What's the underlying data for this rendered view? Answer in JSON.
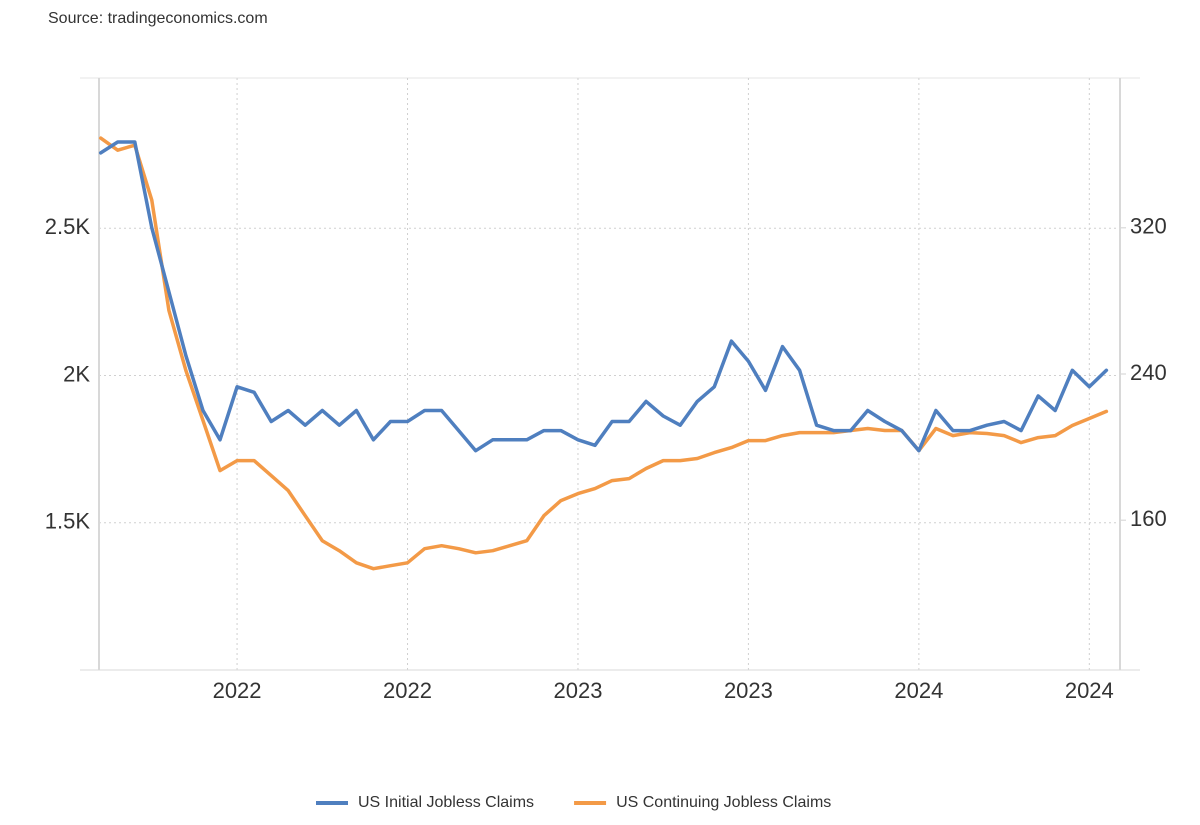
{
  "chart_data": {
    "type": "line",
    "source": "Source: tradingeconomics.com",
    "x": [
      2021.6,
      2021.65,
      2021.7,
      2021.75,
      2021.8,
      2021.85,
      2021.9,
      2021.95,
      2022.0,
      2022.05,
      2022.1,
      2022.15,
      2022.2,
      2022.25,
      2022.3,
      2022.35,
      2022.4,
      2022.45,
      2022.5,
      2022.55,
      2022.6,
      2022.65,
      2022.7,
      2022.75,
      2022.8,
      2022.85,
      2022.9,
      2022.95,
      2023.0,
      2023.05,
      2023.1,
      2023.15,
      2023.2,
      2023.25,
      2023.3,
      2023.35,
      2023.4,
      2023.45,
      2023.5,
      2023.55,
      2023.6,
      2023.65,
      2023.7,
      2023.75,
      2023.8,
      2023.85,
      2023.9,
      2023.95,
      2024.0,
      2024.05,
      2024.1,
      2024.15,
      2024.2,
      2024.25,
      2024.3,
      2024.35,
      2024.4,
      2024.45,
      2024.5,
      2024.55
    ],
    "series": [
      {
        "name": "US Initial Jobless Claims",
        "color": "#4f7fbf",
        "axis": "y2",
        "values": [
          361,
          367,
          367,
          320,
          285,
          250,
          220,
          204,
          233,
          230,
          214,
          220,
          212,
          220,
          212,
          220,
          204,
          214,
          214,
          220,
          220,
          209,
          198,
          204,
          204,
          204,
          209,
          209,
          204,
          201,
          214,
          214,
          225,
          217,
          212,
          225,
          233,
          258,
          247,
          231,
          255,
          242,
          212,
          209,
          209,
          220,
          214,
          209,
          198,
          220,
          209,
          209,
          212,
          214,
          209,
          228,
          220,
          242,
          233,
          242
        ]
      },
      {
        "name": "US Continuing Jobless Claims",
        "color": "#f39a47",
        "values": [
          2806,
          2765,
          2782,
          2595,
          2221,
          2017,
          1847,
          1677,
          1711,
          1711,
          1660,
          1609,
          1524,
          1439,
          1405,
          1364,
          1344,
          1354,
          1364,
          1412,
          1422,
          1412,
          1398,
          1405,
          1422,
          1439,
          1524,
          1575,
          1599,
          1616,
          1643,
          1650,
          1684,
          1711,
          1711,
          1718,
          1738,
          1755,
          1779,
          1779,
          1796,
          1806,
          1806,
          1806,
          1813,
          1820,
          1813,
          1813,
          1745,
          1820,
          1796,
          1806,
          1803,
          1796,
          1772,
          1789,
          1796,
          1830,
          1854,
          1878
        ]
      }
    ],
    "xlim": [
      2021.595,
      2024.59
    ],
    "xticks": [
      {
        "value": 2022.0,
        "label": "2022"
      },
      {
        "value": 2022.5,
        "label": "2022"
      },
      {
        "value": 2023.0,
        "label": "2023"
      },
      {
        "value": 2023.5,
        "label": "2023"
      },
      {
        "value": 2024.0,
        "label": "2024"
      },
      {
        "value": 2024.5,
        "label": "2024"
      }
    ],
    "ylim": [
      1000,
      3010
    ],
    "yticks": [
      {
        "value": 1500,
        "label": "1.5K"
      },
      {
        "value": 2000,
        "label": "2K"
      },
      {
        "value": 2500,
        "label": "2.5K"
      }
    ],
    "y2lim": [
      78,
      402
    ],
    "y2ticks": [
      160,
      240,
      320
    ],
    "grid": true,
    "legend": "bottom"
  }
}
